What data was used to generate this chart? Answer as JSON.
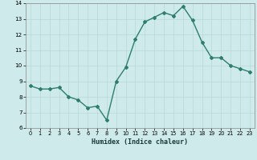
{
  "x": [
    0,
    1,
    2,
    3,
    4,
    5,
    6,
    7,
    8,
    9,
    10,
    11,
    12,
    13,
    14,
    15,
    16,
    17,
    18,
    19,
    20,
    21,
    22,
    23
  ],
  "y": [
    8.7,
    8.5,
    8.5,
    8.6,
    8.0,
    7.8,
    7.3,
    7.4,
    6.5,
    9.0,
    9.9,
    11.7,
    12.8,
    13.1,
    13.4,
    13.2,
    13.8,
    12.9,
    11.5,
    10.5,
    10.5,
    10.0,
    9.8,
    9.6
  ],
  "xlabel": "Humidex (Indice chaleur)",
  "ylim": [
    6,
    14
  ],
  "xlim": [
    -0.5,
    23.5
  ],
  "yticks": [
    6,
    7,
    8,
    9,
    10,
    11,
    12,
    13,
    14
  ],
  "xticks": [
    0,
    1,
    2,
    3,
    4,
    5,
    6,
    7,
    8,
    9,
    10,
    11,
    12,
    13,
    14,
    15,
    16,
    17,
    18,
    19,
    20,
    21,
    22,
    23
  ],
  "line_color": "#2e7d6e",
  "marker": "D",
  "marker_size": 2.0,
  "bg_color": "#ceeaea",
  "grid_color": "#b8d8d8",
  "line_width": 1.0
}
